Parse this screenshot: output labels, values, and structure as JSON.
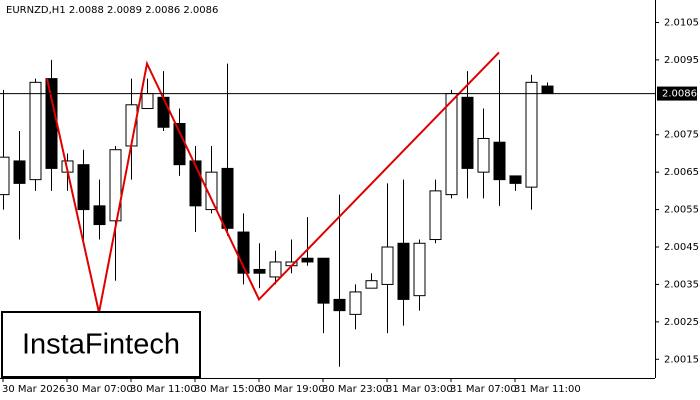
{
  "chart_data": {
    "type": "candlestick",
    "header": "EURNZD,H1  2.0088 2.0089 2.0086 2.0086",
    "logo": "InstaFintech",
    "categories": [
      "30 Mar 2026",
      null,
      null,
      null,
      "30 Mar 07:00",
      null,
      null,
      null,
      "30 Mar 11:00",
      null,
      null,
      null,
      "30 Mar 15:00",
      null,
      null,
      null,
      "30 Mar 19:00",
      null,
      null,
      null,
      "30 Mar 23:00",
      null,
      null,
      null,
      "31 Mar 03:00",
      null,
      null,
      null,
      "31 Mar 07:00",
      null,
      null,
      null,
      "31 Mar 11:00",
      null,
      null
    ],
    "open": [
      2.0059,
      2.0068,
      2.0063,
      2.009,
      2.0065,
      2.0067,
      2.0056,
      2.0052,
      2.0072,
      2.0082,
      2.0085,
      2.0078,
      2.0068,
      2.0055,
      2.0066,
      2.0049,
      2.0039,
      2.0037,
      2.004,
      2.0042,
      2.0042,
      2.0031,
      2.0027,
      2.0034,
      2.0035,
      2.0046,
      2.0032,
      2.0047,
      2.0059,
      2.0085,
      2.0065,
      2.0073,
      2.0064,
      2.0061,
      2.0088
    ],
    "high": [
      2.0087,
      2.0076,
      2.009,
      2.0095,
      2.007,
      2.0071,
      2.0063,
      2.0072,
      2.009,
      2.009,
      2.0092,
      2.0082,
      2.0072,
      2.0072,
      2.0094,
      2.0054,
      2.0046,
      2.0044,
      2.0047,
      2.0053,
      2.0042,
      2.0059,
      2.0035,
      2.0038,
      2.0062,
      2.0063,
      2.0047,
      2.0063,
      2.0087,
      2.0092,
      2.0082,
      2.0095,
      2.0064,
      2.0091,
      2.0089
    ],
    "low": [
      2.0055,
      2.0047,
      2.006,
      2.006,
      2.006,
      2.0047,
      2.0047,
      2.0036,
      2.0063,
      2.0082,
      2.0076,
      2.0064,
      2.0049,
      2.0054,
      2.0048,
      2.0035,
      2.0034,
      2.0035,
      2.0038,
      2.004,
      2.0022,
      2.0013,
      2.0023,
      2.0034,
      2.0022,
      2.0024,
      2.0028,
      2.0046,
      2.0058,
      2.0058,
      2.0058,
      2.0056,
      2.006,
      2.0055,
      2.0086
    ],
    "close": [
      2.0069,
      2.0062,
      2.0089,
      2.0066,
      2.0068,
      2.0055,
      2.0051,
      2.0071,
      2.0083,
      2.0086,
      2.0077,
      2.0067,
      2.0056,
      2.0065,
      2.005,
      2.0038,
      2.0038,
      2.0041,
      2.0041,
      2.0041,
      2.003,
      2.0028,
      2.0033,
      2.0036,
      2.0045,
      2.0031,
      2.0046,
      2.006,
      2.0086,
      2.0066,
      2.0074,
      2.0063,
      2.0062,
      2.0089,
      2.0086
    ],
    "up_color": "#ffffff",
    "down_color": "#000000",
    "pattern": {
      "color": "#e00000",
      "x": [
        2.75,
        6,
        9,
        16,
        31
      ],
      "values": [
        2.009,
        2.00275,
        2.0094,
        2.0031,
        2.0097
      ]
    },
    "price_line": 2.0086,
    "ylim": [
      2.001,
      2.0111
    ],
    "yticks": [
      2.0105,
      2.0095,
      2.0075,
      2.0065,
      2.0055,
      2.0045,
      2.0035,
      2.0025,
      2.0015
    ]
  }
}
